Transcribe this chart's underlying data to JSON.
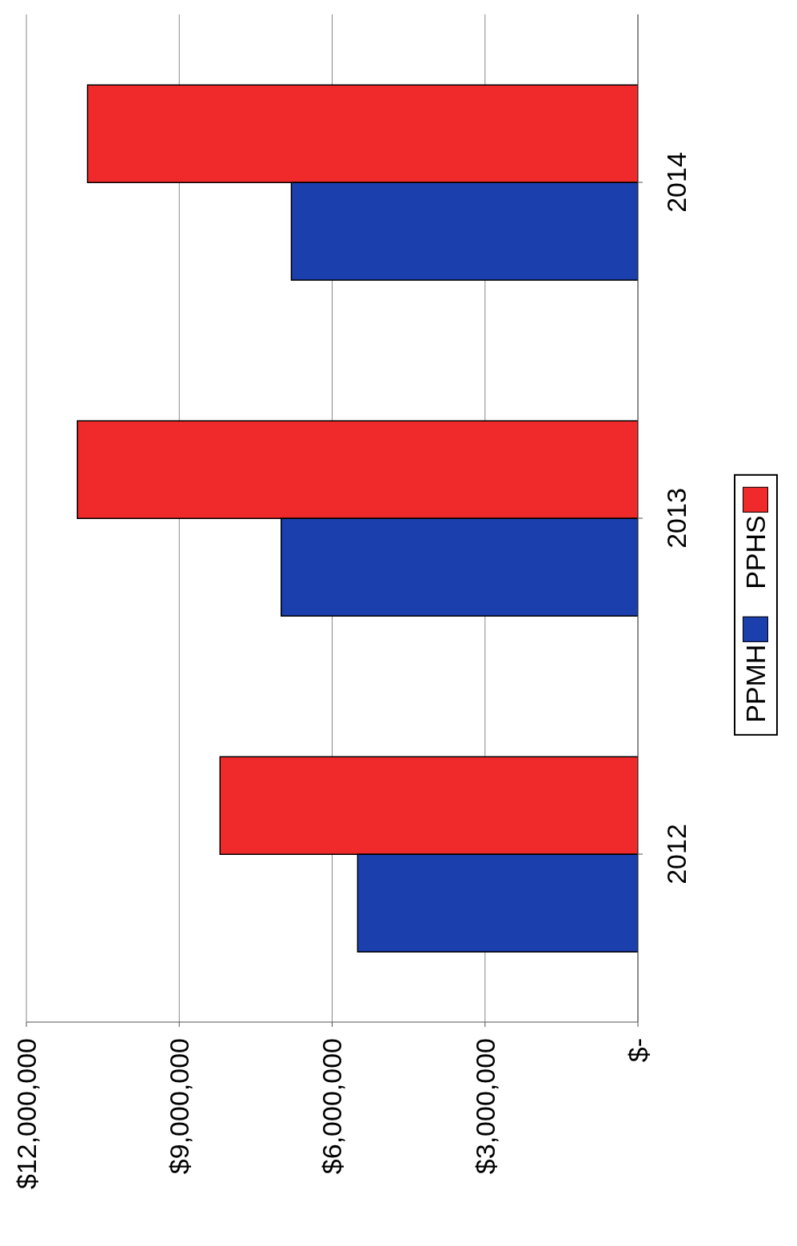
{
  "chart_data": {
    "type": "bar",
    "orientation": "horizontal",
    "categories": [
      "2014",
      "2013",
      "2012"
    ],
    "series": [
      {
        "name": "PPMH",
        "color": "#1c3fae",
        "values": [
          6800000,
          7000000,
          5500000
        ]
      },
      {
        "name": "PPHS",
        "color": "#f02a2a",
        "values": [
          10800000,
          11000000,
          8200000
        ]
      }
    ],
    "xlim": [
      12000000,
      0
    ],
    "xticks": [
      {
        "value": 12000000,
        "label": "$12,000,000"
      },
      {
        "value": 9000000,
        "label": "$9,000,000"
      },
      {
        "value": 6000000,
        "label": "$6,000,000"
      },
      {
        "value": 3000000,
        "label": "$3,000,000"
      },
      {
        "value": 0,
        "label": "$-"
      }
    ],
    "grid": "x",
    "legend": "right"
  }
}
